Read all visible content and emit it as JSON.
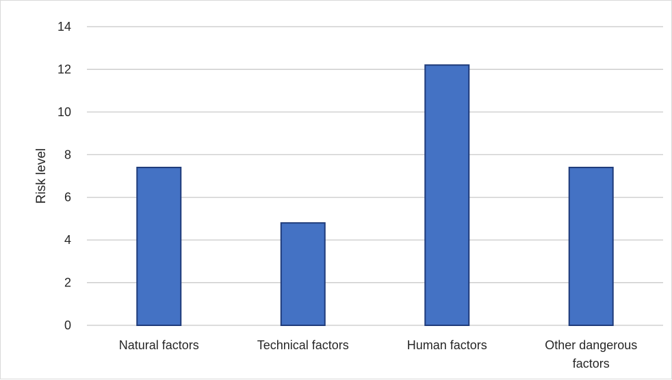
{
  "chart_data": {
    "type": "bar",
    "title": "",
    "xlabel": "",
    "ylabel": "Risk level",
    "categories": [
      [
        "Natural factors"
      ],
      [
        "Technical factors"
      ],
      [
        "Human factors"
      ],
      [
        "Other dangerous",
        "factors"
      ]
    ],
    "values": [
      7.4,
      4.8,
      12.2,
      7.4
    ],
    "ylim": [
      0,
      14
    ],
    "yticks": [
      0,
      2,
      4,
      6,
      8,
      10,
      12,
      14
    ],
    "grid": true,
    "legend": "none",
    "colors": {
      "bar_fill": "#4472C4",
      "bar_stroke": "#1F3B7A",
      "grid": "#c8c8c8",
      "text": "#262626"
    }
  }
}
